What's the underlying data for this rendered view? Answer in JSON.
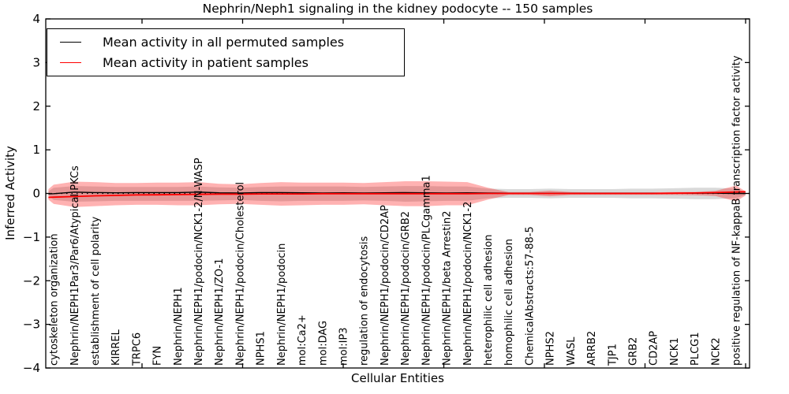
{
  "figure": {
    "title": "Nephrin/Neph1 signaling in the kidney podocyte -- 150 samples",
    "xlabel": "Cellular Entities",
    "ylabel": "Inferred Activity"
  },
  "legend": {
    "items": [
      {
        "label": "Mean activity in all permuted samples",
        "color": "#000000"
      },
      {
        "label": "Mean activity in patient samples",
        "color": "#ff0000"
      }
    ],
    "position": "upper left"
  },
  "chart_data": {
    "type": "line",
    "title": "Nephrin/Neph1 signaling in the kidney podocyte -- 150 samples",
    "xlabel": "Cellular Entities",
    "ylabel": "Inferred Activity",
    "ylim": [
      -4,
      4
    ],
    "ytick_values": [
      4,
      3,
      2,
      1,
      0,
      -1,
      -2,
      -3,
      -4
    ],
    "ytick_labels": [
      "4",
      "3",
      "2",
      "1",
      "0",
      "−1",
      "−2",
      "−3",
      "−4"
    ],
    "grid": false,
    "legend_position": "upper left",
    "categories": [
      "cytoskeleton organization",
      "Nephrin/NEPH1Par3/Par6/Atypical PKCs",
      "establishment of cell polarity",
      "KIRREL",
      "TRPC6",
      "FYN",
      "Nephrin/NEPH1",
      "Nephrin/NEPH1/podocin/NCK1-2/N-WASP",
      "Nephrin/NEPH1/ZO-1",
      "Nephrin/NEPH1/podocin/Cholesterol",
      "NPHS1",
      "Nephrin/NEPH1/podocin",
      "mol:Ca2+",
      "mol:DAG",
      "mol:IP3",
      "regulation of endocytosis",
      "Nephrin/NEPH1/podocin/CD2AP",
      "Nephrin/NEPH1/podocin/GRB2",
      "Nephrin/NEPH1/podocin/PLCgamma1",
      "Nephrin/NEPH1/beta Arrestin2",
      "Nephrin/NEPH1/podocin/NCK1-2",
      "heterophilic cell adhesion",
      "homophilic cell adhesion",
      "ChemicalAbstracts:57-88-5",
      "NPHS2",
      "WASL",
      "ARRB2",
      "TJP1",
      "GRB2",
      "CD2AP",
      "NCK1",
      "PLCG1",
      "NCK2",
      "positive regulation of NF-kappaB transcription factor activity"
    ],
    "x": [
      -0.25,
      0,
      1,
      2,
      3,
      4,
      5,
      6,
      7,
      8,
      9,
      10,
      11,
      12,
      13,
      14,
      15,
      16,
      17,
      18,
      19,
      20,
      21,
      22,
      23,
      24,
      25,
      26,
      27,
      28,
      29,
      30,
      31,
      32,
      33,
      33.45
    ],
    "zero_line": {
      "y": 0,
      "style": "dotted",
      "color": "#000000"
    },
    "series": [
      {
        "name": "Mean activity in all permuted samples",
        "color": "#000000",
        "width": 1.4,
        "values": [
          -0.01,
          -0.005,
          0.03,
          0.02,
          0.015,
          0.02,
          0.02,
          0.02,
          0.03,
          0.015,
          0.01,
          0.02,
          0.02,
          0.015,
          0.01,
          0.015,
          0.01,
          0.015,
          0.02,
          0.015,
          0.01,
          0.015,
          0.01,
          0.005,
          0.005,
          0.005,
          0.005,
          0.005,
          0.005,
          0.005,
          0.005,
          0.005,
          0.005,
          0.005,
          0.0,
          0.0
        ]
      },
      {
        "name": "Mean activity in patient samples",
        "color": "#ff0000",
        "width": 1.8,
        "values": [
          -0.09,
          -0.085,
          -0.07,
          -0.055,
          -0.045,
          -0.035,
          -0.03,
          -0.025,
          -0.02,
          -0.015,
          -0.015,
          -0.01,
          -0.01,
          -0.01,
          -0.005,
          -0.005,
          -0.005,
          -0.005,
          -0.005,
          -0.005,
          -0.005,
          -0.005,
          0.0,
          0.0,
          0.0,
          0.0,
          0.0,
          0.0,
          0.0,
          0.0,
          0.0,
          0.005,
          0.01,
          0.02,
          0.035,
          0.04
        ]
      }
    ],
    "bands": [
      {
        "name": "permuted-samples-range",
        "color": "#8a8a8a",
        "opacity": 0.32,
        "upper": [
          0.05,
          0.13,
          0.17,
          0.16,
          0.15,
          0.15,
          0.15,
          0.15,
          0.16,
          0.14,
          0.13,
          0.15,
          0.16,
          0.16,
          0.16,
          0.16,
          0.15,
          0.16,
          0.17,
          0.17,
          0.16,
          0.16,
          0.11,
          0.1,
          0.1,
          0.11,
          0.1,
          0.1,
          0.1,
          0.11,
          0.11,
          0.12,
          0.13,
          0.13,
          0.11,
          0.03
        ],
        "lower": [
          -0.05,
          -0.15,
          -0.19,
          -0.18,
          -0.17,
          -0.17,
          -0.17,
          -0.17,
          -0.17,
          -0.16,
          -0.15,
          -0.17,
          -0.18,
          -0.17,
          -0.17,
          -0.17,
          -0.16,
          -0.17,
          -0.19,
          -0.18,
          -0.17,
          -0.17,
          -0.11,
          -0.1,
          -0.1,
          -0.11,
          -0.1,
          -0.1,
          -0.1,
          -0.11,
          -0.11,
          -0.12,
          -0.13,
          -0.13,
          -0.11,
          -0.03
        ]
      },
      {
        "name": "patient-samples-range",
        "color": "#ff0000",
        "opacity": 0.3,
        "upper": [
          0.1,
          0.2,
          0.27,
          0.26,
          0.24,
          0.24,
          0.25,
          0.25,
          0.26,
          0.22,
          0.21,
          0.24,
          0.26,
          0.25,
          0.25,
          0.25,
          0.24,
          0.26,
          0.28,
          0.28,
          0.27,
          0.26,
          0.13,
          0.03,
          0.03,
          0.065,
          0.03,
          0.025,
          0.025,
          0.025,
          0.025,
          0.03,
          0.035,
          0.06,
          0.18,
          0.05
        ],
        "lower": [
          -0.14,
          -0.24,
          -0.31,
          -0.29,
          -0.27,
          -0.26,
          -0.26,
          -0.27,
          -0.27,
          -0.25,
          -0.24,
          -0.26,
          -0.28,
          -0.27,
          -0.26,
          -0.26,
          -0.25,
          -0.27,
          -0.29,
          -0.29,
          -0.27,
          -0.27,
          -0.14,
          -0.035,
          -0.035,
          -0.065,
          -0.035,
          -0.03,
          -0.03,
          -0.03,
          -0.03,
          -0.035,
          -0.04,
          -0.06,
          -0.18,
          -0.05
        ]
      }
    ]
  }
}
